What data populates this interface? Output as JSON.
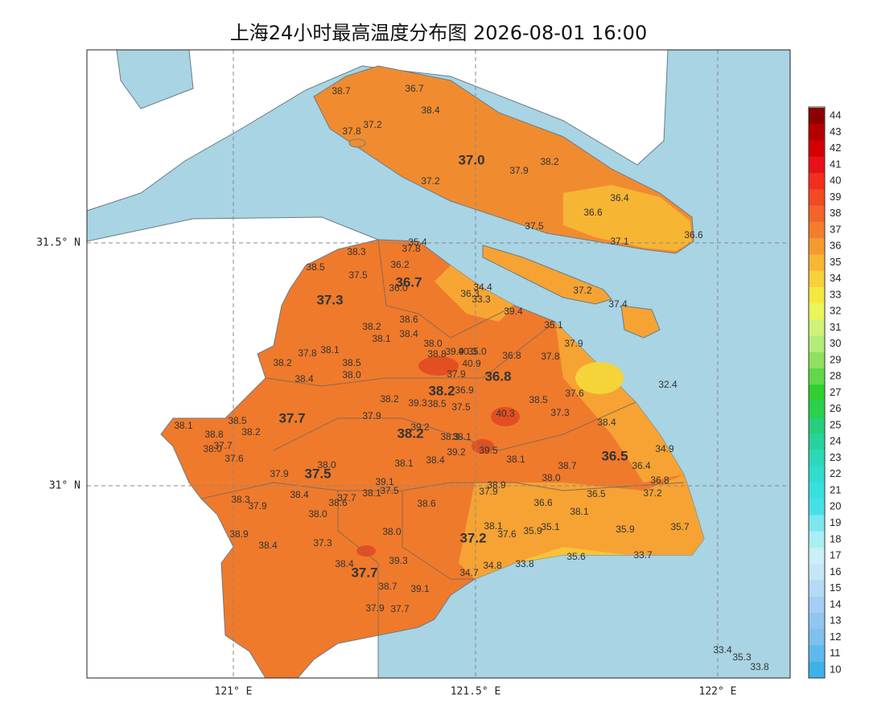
{
  "title": "上海24小时最高温度分布图 2026-08-01 16:00",
  "axes": {
    "lat": [
      "31.5° N",
      "31° N"
    ],
    "lon": [
      "121° E",
      "121.5° E",
      "122° E"
    ]
  },
  "colorbar": {
    "ticks": [
      44,
      43,
      42,
      41,
      40,
      39,
      38,
      37,
      36,
      35,
      34,
      33,
      32,
      31,
      30,
      29,
      28,
      27,
      26,
      25,
      24,
      23,
      22,
      21,
      20,
      19,
      18,
      17,
      16,
      15,
      14,
      13,
      12,
      11,
      10
    ]
  },
  "districts": [
    "37.0",
    "36.7",
    "37.3",
    "36.8",
    "38.2",
    "37.7",
    "38.2",
    "36.5",
    "37.5",
    "37.2",
    "37.7"
  ],
  "stations": [
    "38.7",
    "36.7",
    "38.4",
    "37.2",
    "37.8",
    "37.9",
    "38.2",
    "37.2",
    "36.4",
    "36.6",
    "37.5",
    "37.1",
    "36.6",
    "37.2",
    "37.4",
    "35.4",
    "37.8",
    "36.2",
    "38.3",
    "38.5",
    "37.5",
    "36.0",
    "36.3",
    "34.4",
    "33.3",
    "39.4",
    "38.6",
    "38.2",
    "38.4",
    "38.1",
    "35.1",
    "37.9",
    "38.0",
    "38.8",
    "39.9",
    "40.3",
    "35.0",
    "38.1",
    "37.8",
    "36.8",
    "37.8",
    "38.2",
    "38.5",
    "40.9",
    "38.0",
    "37.9",
    "38.4",
    "32.4",
    "36.9",
    "38.2",
    "37.6",
    "38.5",
    "39.3",
    "38.5",
    "37.5",
    "38.5",
    "37.9",
    "40.3",
    "37.3",
    "38.4",
    "38.1",
    "38.2",
    "39.2",
    "38.8",
    "38.3",
    "38.1",
    "37.7",
    "38.0",
    "39.5",
    "39.2",
    "34.9",
    "37.6",
    "38.1",
    "38.4",
    "38.1",
    "38.0",
    "36.4",
    "38.7",
    "37.9",
    "38.0",
    "39.1",
    "36.8",
    "38.9",
    "37.5",
    "38.1",
    "37.9",
    "38.4",
    "36.5",
    "37.2",
    "37.7",
    "38.6",
    "38.3",
    "37.9",
    "36.6",
    "38.6",
    "38.1",
    "38.0",
    "38.1",
    "35.1",
    "35.9",
    "37.6",
    "38.0",
    "35.9",
    "35.7",
    "38.9",
    "37.3",
    "38.4",
    "33.7",
    "35.6",
    "39.3",
    "38.4",
    "34.8",
    "33.8",
    "34.7",
    "38.7",
    "39.1",
    "37.9",
    "37.7",
    "33.4",
    "35.3",
    "33.8"
  ]
}
